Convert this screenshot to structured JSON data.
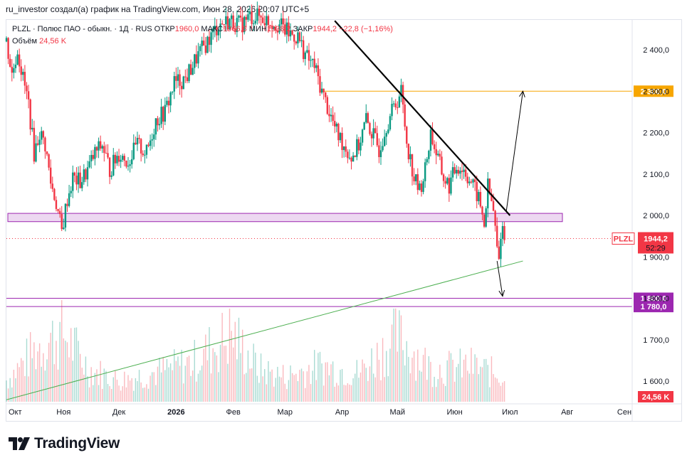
{
  "caption": "ru_investor создал(а) график на TradingView.com, Июн 28, 2026 20:07 UTC+5",
  "legend": {
    "symbol_line": "PLZL · Полюс ПАО - обыкн. · 1Д · RUS",
    "open_label": "ОТКР",
    "open": "1960,0",
    "high_label": "МАКС",
    "high": "1966,6",
    "low_label": "МИН",
    "low": "1938,2",
    "close_label": "ЗАКР",
    "close": "1944,2",
    "change": "−22,8 (−1,16%)",
    "volume_label": "Объём",
    "volume": "24,56 K"
  },
  "brand": {
    "name": "TradingView"
  },
  "colors": {
    "up": "#089981",
    "down": "#f23645",
    "resistance": "#f7a600",
    "zone": "#9c27b0",
    "trend": "#4caf50",
    "line": "#000000"
  },
  "chart_data": {
    "type": "candlestick",
    "symbol": "PLZL",
    "timeframe": "1Д",
    "y_ticks": [
      "2 400,0",
      "2 300,0",
      "2 200,0",
      "2 100,0",
      "2 000,0",
      "1 900,0",
      "1 800,0",
      "1 700,0",
      "1 600,0"
    ],
    "ylim": [
      1530,
      2470
    ],
    "x_ticks": [
      "Окт",
      "Ноя",
      "Дек",
      "2026",
      "Фев",
      "Мар",
      "Апр",
      "Май",
      "Июн",
      "Июл",
      "Авг",
      "Сен"
    ],
    "last_price": {
      "symbol": "PLZL",
      "value": "1944,2",
      "countdown": "52:29"
    },
    "levels": [
      {
        "value": 2300,
        "label": "2 300,0",
        "color": "#f7a600"
      },
      {
        "value": 1800,
        "label": "1 800,0",
        "color": "#9c27b0"
      },
      {
        "value": 1780,
        "label": "1 780,0",
        "color": "#9c27b0"
      }
    ],
    "support_zone": [
      1985,
      2005
    ],
    "volume_badge": "24,56 K",
    "trend_lines": [
      {
        "kind": "resistance",
        "from": [
          "2026-03-28",
          2470
        ],
        "to": [
          "2026-07-01",
          2000
        ]
      },
      {
        "kind": "support",
        "from": [
          "2025-10-01",
          1555
        ],
        "to": [
          "2026-07-08",
          1890
        ]
      }
    ],
    "projections": [
      {
        "from": [
          "2026-06-29",
          2010
        ],
        "to": [
          "2026-07-08",
          2300
        ]
      },
      {
        "from": [
          "2026-06-24",
          1890
        ],
        "to": [
          "2026-06-27",
          1805
        ]
      }
    ],
    "price_path": [
      [
        "2025-10-01",
        2420
      ],
      [
        "2025-10-04",
        2340
      ],
      [
        "2025-10-07",
        2400
      ],
      [
        "2025-10-10",
        2330
      ],
      [
        "2025-10-13",
        2270
      ],
      [
        "2025-10-16",
        2150
      ],
      [
        "2025-10-19",
        2200
      ],
      [
        "2025-10-22",
        2170
      ],
      [
        "2025-10-25",
        2080
      ],
      [
        "2025-10-28",
        2030
      ],
      [
        "2025-10-31",
        1960
      ],
      [
        "2025-11-03",
        2040
      ],
      [
        "2025-11-06",
        2090
      ],
      [
        "2025-11-10",
        2080
      ],
      [
        "2025-11-14",
        2110
      ],
      [
        "2025-11-18",
        2150
      ],
      [
        "2025-11-22",
        2170
      ],
      [
        "2025-11-26",
        2110
      ],
      [
        "2025-12-01",
        2150
      ],
      [
        "2025-12-06",
        2130
      ],
      [
        "2025-12-11",
        2170
      ],
      [
        "2025-12-16",
        2150
      ],
      [
        "2025-12-21",
        2230
      ],
      [
        "2025-12-26",
        2250
      ],
      [
        "2025-12-31",
        2320
      ],
      [
        "2026-01-06",
        2330
      ],
      [
        "2026-01-12",
        2380
      ],
      [
        "2026-01-18",
        2420
      ],
      [
        "2026-01-24",
        2460
      ],
      [
        "2026-01-30",
        2470
      ],
      [
        "2026-02-05",
        2460
      ],
      [
        "2026-02-10",
        2480
      ],
      [
        "2026-02-15",
        2480
      ],
      [
        "2026-02-20",
        2470
      ],
      [
        "2026-02-26",
        2460
      ],
      [
        "2026-03-03",
        2440
      ],
      [
        "2026-03-08",
        2430
      ],
      [
        "2026-03-13",
        2380
      ],
      [
        "2026-03-17",
        2360
      ],
      [
        "2026-03-21",
        2300
      ],
      [
        "2026-03-25",
        2250
      ],
      [
        "2026-03-29",
        2200
      ],
      [
        "2026-04-02",
        2170
      ],
      [
        "2026-04-06",
        2140
      ],
      [
        "2026-04-10",
        2170
      ],
      [
        "2026-04-14",
        2230
      ],
      [
        "2026-04-17",
        2200
      ],
      [
        "2026-04-21",
        2160
      ],
      [
        "2026-04-25",
        2220
      ],
      [
        "2026-04-29",
        2260
      ],
      [
        "2026-05-03",
        2300
      ],
      [
        "2026-05-06",
        2180
      ],
      [
        "2026-05-10",
        2090
      ],
      [
        "2026-05-13",
        2060
      ],
      [
        "2026-05-16",
        2110
      ],
      [
        "2026-05-19",
        2200
      ],
      [
        "2026-05-22",
        2150
      ],
      [
        "2026-05-26",
        2090
      ],
      [
        "2026-05-29",
        2070
      ],
      [
        "2026-06-02",
        2120
      ],
      [
        "2026-06-06",
        2110
      ],
      [
        "2026-06-10",
        2080
      ],
      [
        "2026-06-14",
        2040
      ],
      [
        "2026-06-17",
        1980
      ],
      [
        "2026-06-19",
        2070
      ],
      [
        "2026-06-22",
        2010
      ],
      [
        "2026-06-24",
        1920
      ],
      [
        "2026-06-25",
        1890
      ],
      [
        "2026-06-26",
        1960
      ],
      [
        "2026-06-27",
        1970
      ],
      [
        "2026-06-28",
        1944
      ]
    ],
    "volume_path": [
      [
        "2025-10-01",
        6
      ],
      [
        "2025-10-20",
        16
      ],
      [
        "2025-11-01",
        19
      ],
      [
        "2025-11-15",
        9
      ],
      [
        "2025-12-01",
        6
      ],
      [
        "2025-12-20",
        8
      ],
      [
        "2026-01-10",
        11
      ],
      [
        "2026-01-31",
        19
      ],
      [
        "2026-02-15",
        9
      ],
      [
        "2026-03-01",
        7
      ],
      [
        "2026-03-20",
        10
      ],
      [
        "2026-04-10",
        8
      ],
      [
        "2026-05-01",
        18
      ],
      [
        "2026-05-20",
        9
      ],
      [
        "2026-06-10",
        10
      ],
      [
        "2026-06-28",
        7
      ]
    ]
  }
}
